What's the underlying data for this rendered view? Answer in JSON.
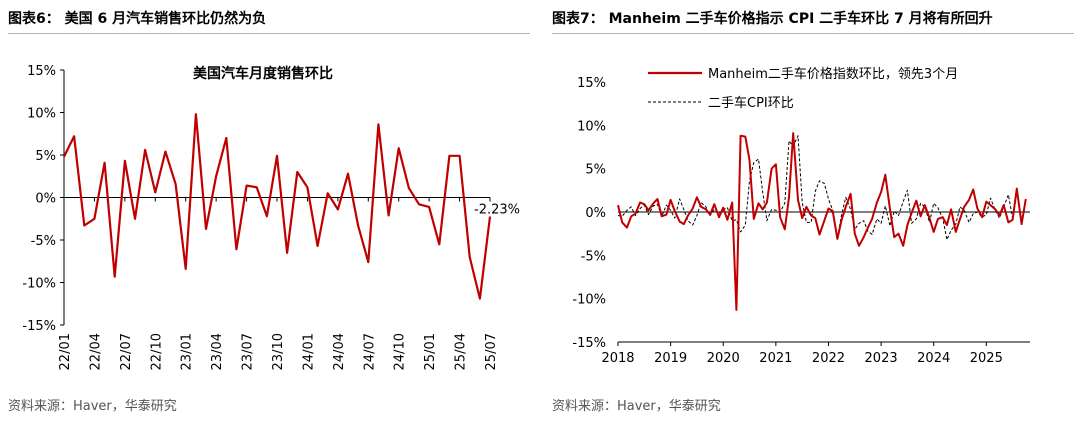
{
  "left": {
    "panel_title": "图表6： 美国 6 月汽车销售环比仍然为负",
    "source": "资料来源：Haver，华泰研究"
  },
  "right": {
    "panel_title": "图表7： Manheim 二手车价格指示 CPI 二手车环比 7 月将有所回升",
    "source": "资料来源：Haver，华泰研究"
  },
  "colors": {
    "red": "#c00000",
    "black": "#000000",
    "rule": "#b5b5b5"
  },
  "chart_data": [
    {
      "type": "line",
      "title": "美国汽车月度销售环比",
      "ylim": [
        -15,
        15
      ],
      "yticks": [
        "15%",
        "10%",
        "5%",
        "0%",
        "-5%",
        "-10%",
        "-15%"
      ],
      "ytick_values": [
        15,
        10,
        5,
        0,
        -5,
        -10,
        -15
      ],
      "xtick_labels": [
        "22/01",
        "22/04",
        "22/07",
        "22/10",
        "23/01",
        "23/04",
        "23/07",
        "23/10",
        "24/01",
        "24/04",
        "24/07",
        "24/10",
        "25/01",
        "25/04",
        "25/07"
      ],
      "annotation": "-2.23%",
      "series": [
        {
          "color": "#c00000",
          "x": [
            "22/01",
            "22/02",
            "22/03",
            "22/04",
            "22/05",
            "22/06",
            "22/07",
            "22/08",
            "22/09",
            "22/10",
            "22/11",
            "22/12",
            "23/01",
            "23/02",
            "23/03",
            "23/04",
            "23/05",
            "23/06",
            "23/07",
            "23/08",
            "23/09",
            "23/10",
            "23/11",
            "23/12",
            "24/01",
            "24/02",
            "24/03",
            "24/04",
            "24/05",
            "24/06",
            "24/07",
            "24/08",
            "24/09",
            "24/10",
            "24/11",
            "24/12",
            "25/01",
            "25/02",
            "25/03",
            "25/04",
            "25/05",
            "25/06",
            "25/07"
          ],
          "values": [
            4.8,
            7.2,
            -3.3,
            -2.5,
            4.1,
            -9.3,
            4.3,
            -2.5,
            5.6,
            0.6,
            5.4,
            1.6,
            -8.4,
            9.8,
            -3.7,
            2.5,
            7.0,
            -6.1,
            1.4,
            1.2,
            -2.2,
            4.9,
            -6.5,
            3.0,
            1.2,
            -5.7,
            0.5,
            -1.4,
            2.8,
            -3.3,
            -7.6,
            8.6,
            -2.1,
            5.8,
            1.1,
            -0.8,
            -1.1,
            -5.5,
            4.9,
            4.9,
            -7.0,
            -11.9,
            -2.23
          ]
        }
      ]
    },
    {
      "type": "line",
      "title": "",
      "ylim": [
        -15,
        15
      ],
      "yticks": [
        "15%",
        "10%",
        "5%",
        "0%",
        "-5%",
        "-10%",
        "-15%"
      ],
      "ytick_values": [
        15,
        10,
        5,
        0,
        -5,
        -10,
        -15
      ],
      "xtick_labels": [
        "2018",
        "2019",
        "2020",
        "2021",
        "2022",
        "2023",
        "2024",
        "2025"
      ],
      "xlim": [
        2018,
        2025.83
      ],
      "legend_position": "top-left",
      "series": [
        {
          "name": "Manheim二手车价格指数环比，领先3个月",
          "color": "#c00000",
          "style": "solid",
          "x": [
            2018.0,
            2018.08,
            2018.17,
            2018.25,
            2018.33,
            2018.42,
            2018.5,
            2018.58,
            2018.67,
            2018.75,
            2018.83,
            2018.92,
            2019.0,
            2019.08,
            2019.17,
            2019.25,
            2019.33,
            2019.42,
            2019.5,
            2019.58,
            2019.67,
            2019.75,
            2019.83,
            2019.92,
            2020.0,
            2020.08,
            2020.17,
            2020.25,
            2020.33,
            2020.42,
            2020.5,
            2020.58,
            2020.67,
            2020.75,
            2020.83,
            2020.92,
            2021.0,
            2021.08,
            2021.17,
            2021.25,
            2021.33,
            2021.42,
            2021.5,
            2021.58,
            2021.67,
            2021.75,
            2021.83,
            2021.92,
            2022.0,
            2022.08,
            2022.17,
            2022.25,
            2022.33,
            2022.42,
            2022.5,
            2022.58,
            2022.67,
            2022.75,
            2022.83,
            2022.92,
            2023.0,
            2023.08,
            2023.17,
            2023.25,
            2023.33,
            2023.42,
            2023.5,
            2023.58,
            2023.67,
            2023.75,
            2023.83,
            2023.92,
            2024.0,
            2024.08,
            2024.17,
            2024.25,
            2024.33,
            2024.42,
            2024.5,
            2024.58,
            2024.67,
            2024.75,
            2024.83,
            2024.92,
            2025.0,
            2025.08,
            2025.17,
            2025.25,
            2025.33,
            2025.42,
            2025.5,
            2025.58,
            2025.67,
            2025.75
          ],
          "values": [
            0.8,
            -1.2,
            -1.8,
            -0.5,
            -0.2,
            1.1,
            0.9,
            0.2,
            1.0,
            1.5,
            -0.5,
            -0.3,
            1.4,
            0.1,
            -1.1,
            -1.4,
            -0.4,
            0.4,
            1.7,
            0.6,
            0.3,
            -0.3,
            0.9,
            -0.6,
            0.5,
            -0.9,
            1.1,
            -11.3,
            8.8,
            8.7,
            6.0,
            -0.8,
            1.0,
            0.3,
            1.1,
            5.0,
            5.5,
            -0.6,
            -2.0,
            1.7,
            9.1,
            1.4,
            -0.7,
            0.6,
            -0.4,
            -0.7,
            -2.6,
            -1.0,
            0.4,
            0.1,
            -3.1,
            -0.9,
            0.6,
            2.1,
            -2.5,
            -3.9,
            -2.9,
            -1.8,
            -0.8,
            1.1,
            2.3,
            4.3,
            0.3,
            -2.9,
            -2.5,
            -3.9,
            -1.5,
            -0.1,
            1.3,
            -0.5,
            0.8,
            -0.7,
            -2.3,
            -0.8,
            -0.6,
            -1.5,
            0.3,
            -2.3,
            -0.8,
            0.6,
            1.4,
            2.6,
            0.4,
            -0.6,
            1.2,
            0.8,
            0.3,
            -0.4,
            0.8,
            -1.2,
            -0.9,
            2.7,
            -1.4,
            1.5
          ]
        },
        {
          "name": "二手车CPI环比",
          "color": "#000000",
          "style": "dashed",
          "x": [
            2018.0,
            2018.08,
            2018.17,
            2018.25,
            2018.33,
            2018.42,
            2018.5,
            2018.58,
            2018.67,
            2018.75,
            2018.83,
            2018.92,
            2019.0,
            2019.08,
            2019.17,
            2019.25,
            2019.33,
            2019.42,
            2019.5,
            2019.58,
            2019.67,
            2019.75,
            2019.83,
            2019.92,
            2020.0,
            2020.08,
            2020.17,
            2020.25,
            2020.33,
            2020.42,
            2020.5,
            2020.58,
            2020.67,
            2020.75,
            2020.83,
            2020.92,
            2021.0,
            2021.08,
            2021.17,
            2021.25,
            2021.33,
            2021.42,
            2021.5,
            2021.58,
            2021.67,
            2021.75,
            2021.83,
            2021.92,
            2022.0,
            2022.08,
            2022.17,
            2022.25,
            2022.33,
            2022.42,
            2022.5,
            2022.58,
            2022.67,
            2022.75,
            2022.83,
            2022.92,
            2023.0,
            2023.08,
            2023.17,
            2023.25,
            2023.33,
            2023.42,
            2023.5,
            2023.58,
            2023.67,
            2023.75,
            2023.83,
            2023.92,
            2024.0,
            2024.08,
            2024.17,
            2024.25,
            2024.33,
            2024.42,
            2024.5,
            2024.58,
            2024.67,
            2024.75,
            2024.83,
            2024.92,
            2025.0,
            2025.08,
            2025.17,
            2025.25,
            2025.33,
            2025.42,
            2025.5
          ],
          "values": [
            -0.4,
            -0.5,
            0.2,
            0.6,
            -0.4,
            0.4,
            0.8,
            -0.3,
            0.7,
            0.9,
            -0.5,
            0.8,
            0.2,
            -0.7,
            1.5,
            0.3,
            -1.0,
            -1.5,
            -0.4,
            1.1,
            0.6,
            -0.4,
            0.3,
            -0.2,
            0.3,
            0.5,
            -1.0,
            -0.9,
            -2.3,
            -1.5,
            3.6,
            5.7,
            6.1,
            2.3,
            -1.0,
            0.3,
            0.2,
            0.0,
            1.0,
            8.2,
            7.6,
            8.8,
            1.1,
            -1.2,
            -1.2,
            2.4,
            3.6,
            3.3,
            1.5,
            0.2,
            -3.0,
            -0.3,
            1.7,
            0.3,
            -2.0,
            -1.3,
            -1.0,
            -2.2,
            -2.6,
            -0.8,
            -1.3,
            0.7,
            -1.6,
            0.1,
            -0.4,
            1.2,
            2.5,
            -1.3,
            -0.8,
            1.0,
            0.6,
            -1.2,
            1.0,
            0.5,
            -0.7,
            -3.2,
            -2.1,
            -1.4,
            0.6,
            0.2,
            -1.2,
            -0.2,
            0.0,
            -0.6,
            -0.3,
            1.6,
            0.2,
            -0.7,
            0.6,
            2.0,
            -0.7
          ]
        }
      ]
    }
  ]
}
